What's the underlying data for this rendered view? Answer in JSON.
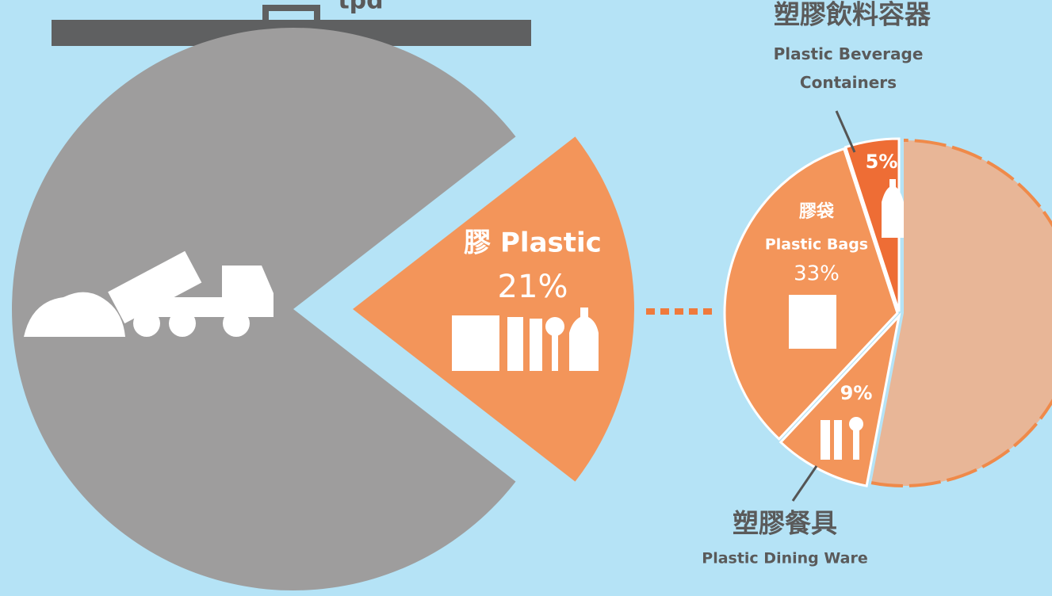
{
  "chart_data": [
    {
      "type": "pie",
      "annotation": "tpd",
      "categories": [
        null,
        "膠 Plastic"
      ],
      "values": [
        79,
        21
      ],
      "value_labels": [
        null,
        "21%"
      ],
      "colors": [
        "#9e9d9d",
        "#f3955a"
      ]
    },
    {
      "type": "pie",
      "categories_zh": [
        "塑膠飲料容器",
        "膠袋",
        "塑膠餐具",
        null
      ],
      "categories": [
        "Plastic Beverage Containers",
        "Plastic Bags",
        "Plastic Dining Ware",
        null
      ],
      "values": [
        5,
        33,
        9,
        53
      ],
      "value_labels": [
        "5%",
        "33%",
        "9%",
        null
      ],
      "colors": [
        "#ee6d35",
        "#f3955a",
        "#f3955a",
        "#e8b697"
      ]
    }
  ]
}
